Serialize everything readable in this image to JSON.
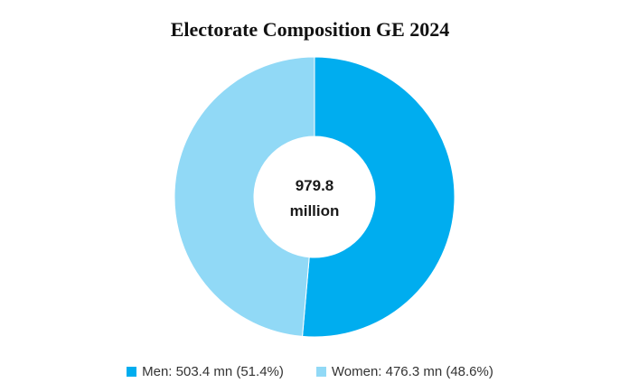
{
  "chart_data": {
    "type": "pie",
    "title": "Electorate Composition GE 2024",
    "center_label": {
      "line1": "979.8",
      "line2": "million"
    },
    "slices": [
      {
        "name": "Men",
        "value": 503.4,
        "percent": 51.4,
        "label": "Men: 503.4 mn (51.4%)",
        "color": "#00adef"
      },
      {
        "name": "Women",
        "value": 476.3,
        "percent": 48.6,
        "label": "Women: 476.3 mn (48.6%)",
        "color": "#91d9f6"
      }
    ],
    "legend_position": "bottom",
    "start_angle": "12 o'clock, clockwise"
  }
}
